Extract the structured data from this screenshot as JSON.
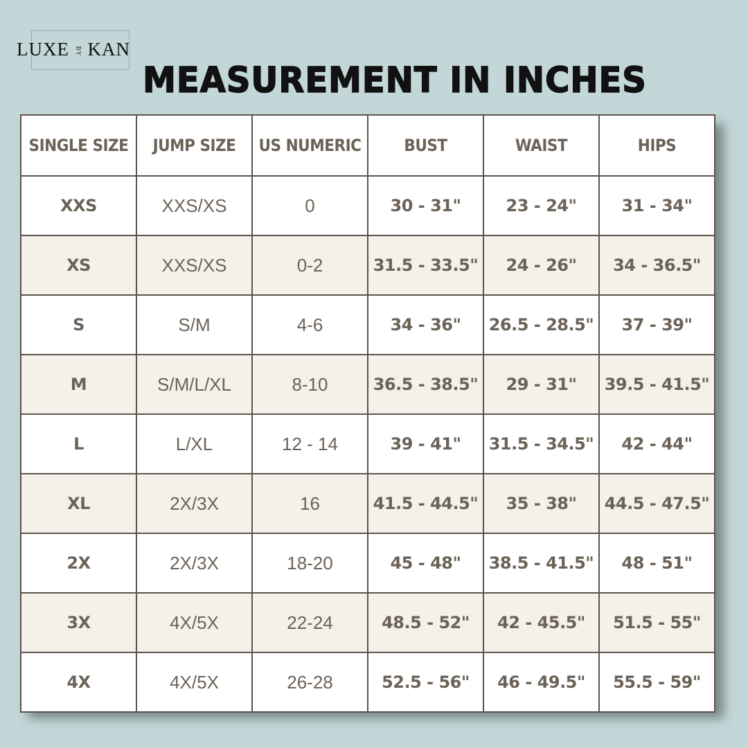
{
  "logo": {
    "left": "LUXE",
    "middle": "BY",
    "right": "KAN"
  },
  "title": "MEASUREMENT IN INCHES",
  "table": {
    "headers": [
      "SINGLE SIZE",
      "JUMP SIZE",
      "US NUMERIC",
      "BUST",
      "WAIST",
      "HIPS"
    ],
    "rows": [
      [
        "XXS",
        "XXS/XS",
        "0",
        "30 - 31\"",
        "23 - 24\"",
        "31 - 34\""
      ],
      [
        "XS",
        "XXS/XS",
        "0-2",
        "31.5 - 33.5\"",
        "24 - 26\"",
        "34 - 36.5\""
      ],
      [
        "S",
        "S/M",
        "4-6",
        "34 - 36\"",
        "26.5 - 28.5\"",
        "37 - 39\""
      ],
      [
        "M",
        "S/M/L/XL",
        "8-10",
        "36.5 - 38.5\"",
        "29 - 31\"",
        "39.5 - 41.5\""
      ],
      [
        "L",
        "L/XL",
        "12 - 14",
        "39 - 41\"",
        "31.5 - 34.5\"",
        "42 - 44\""
      ],
      [
        "XL",
        "2X/3X",
        "16",
        "41.5 - 44.5\"",
        "35 - 38\"",
        "44.5 - 47.5\""
      ],
      [
        "2X",
        "2X/3X",
        "18-20",
        "45 - 48\"",
        "38.5 - 41.5\"",
        "48 - 51\""
      ],
      [
        "3X",
        "4X/5X",
        "22-24",
        "48.5 - 52\"",
        "42 - 45.5\"",
        "51.5 - 55\""
      ],
      [
        "4X",
        "4X/5X",
        "26-28",
        "52.5 - 56\"",
        "46 - 49.5\"",
        "55.5 - 59\""
      ]
    ]
  },
  "colors": {
    "background": "#c3d6d8",
    "text": "#6b6258",
    "alt_row": "#f4f0ea",
    "border": "#5d544b"
  }
}
